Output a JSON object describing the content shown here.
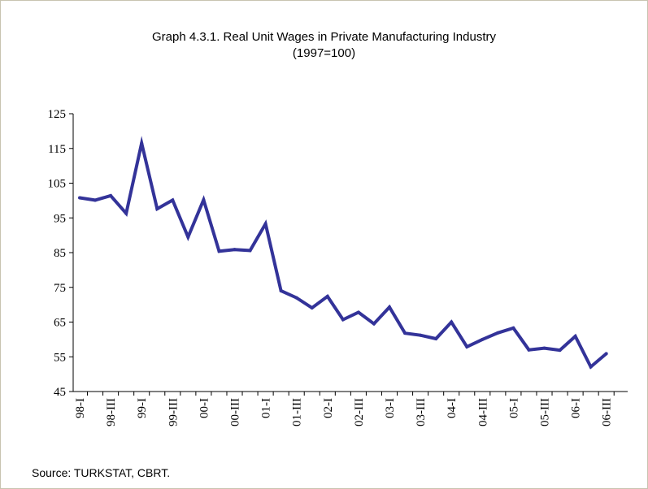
{
  "chart_data": {
    "type": "line",
    "title": "Graph 4.3.1. Real Unit Wages in Private Manufacturing Industry",
    "subtitle": "(1997=100)",
    "source": "Source: TURKSTAT, CBRT.",
    "ylim": [
      45,
      125
    ],
    "yticks": [
      "45",
      "55",
      "65",
      "75",
      "85",
      "95",
      "105",
      "115",
      "125"
    ],
    "xtick_labels": [
      "98-I",
      "98-III",
      "99-I",
      "99-III",
      "00-I",
      "00-III",
      "01-I",
      "01-III",
      "02-I",
      "02-III",
      "03-I",
      "03-III",
      "04-I",
      "04-III",
      "05-I",
      "05-III",
      "06-I",
      "06-III"
    ],
    "x": [
      "98-I",
      "98-II",
      "98-III",
      "98-IV",
      "99-I",
      "99-II",
      "99-III",
      "99-IV",
      "00-I",
      "00-II",
      "00-III",
      "00-IV",
      "01-I",
      "01-II",
      "01-III",
      "01-IV",
      "02-I",
      "02-II",
      "02-III",
      "02-IV",
      "03-I",
      "03-II",
      "03-III",
      "03-IV",
      "04-I",
      "04-II",
      "04-III",
      "04-IV",
      "05-I",
      "05-II",
      "05-III",
      "05-IV",
      "06-I",
      "06-II",
      "06-III"
    ],
    "series": [
      {
        "color": "#333399",
        "values": [
          100.8,
          100.1,
          101.4,
          96.3,
          116.5,
          97.6,
          100.1,
          89.5,
          100.2,
          85.4,
          85.9,
          85.6,
          93.3,
          74.0,
          72.0,
          69.1,
          72.4,
          65.7,
          67.8,
          64.5,
          69.3,
          61.8,
          61.2,
          60.2,
          65.0,
          57.9,
          60.0,
          61.9,
          63.3,
          57.0,
          57.5,
          56.9,
          60.9,
          52.1,
          55.9
        ]
      }
    ],
    "grid": false,
    "legend": "none"
  }
}
